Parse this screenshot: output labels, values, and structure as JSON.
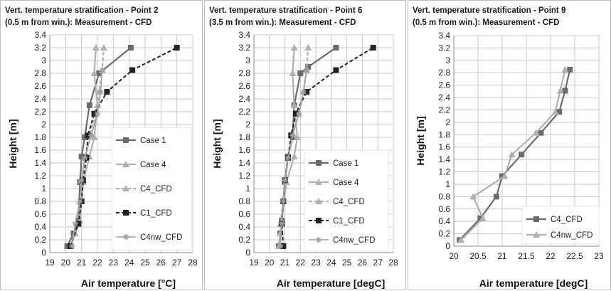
{
  "colors": {
    "case1": "#6b6b6b",
    "case4": "#b0b0b0",
    "c4cfd": "#b0b0b0",
    "c1cfd": "#222222",
    "c4nw": "#a0a0a0",
    "grid": "#c8c8c8"
  },
  "chart_data": [
    {
      "type": "line",
      "title": [
        "Vert. temperature stratification - Point 2",
        "(0.5 m from win.): Measurement - CFD"
      ],
      "xlabel": "Air temperature [°C]",
      "ylabel": "Height [m]",
      "xlim": [
        19,
        28
      ],
      "ylim": [
        0,
        3.4
      ],
      "xticks": [
        "19",
        "20",
        "21",
        "22",
        "23",
        "24",
        "25",
        "26",
        "27",
        "28"
      ],
      "yticks": [
        "0",
        "0.2",
        "0.4",
        "0.6",
        "0.8",
        "1",
        "1.2",
        "1.4",
        "1.6",
        "1.8",
        "2",
        "2.2",
        "2.4",
        "2.6",
        "2.8",
        "3",
        "3.2",
        "3.4"
      ],
      "grid": true,
      "legend_position": "right",
      "series": [
        {
          "name": "Case 1",
          "style": "case1",
          "points": [
            [
              20.1,
              0.1
            ],
            [
              20.5,
              0.3
            ],
            [
              20.8,
              0.5
            ],
            [
              20.9,
              1.1
            ],
            [
              21.0,
              1.5
            ],
            [
              21.2,
              1.8
            ],
            [
              21.5,
              2.3
            ],
            [
              22.1,
              2.8
            ],
            [
              24.1,
              3.2
            ]
          ]
        },
        {
          "name": "Case 4",
          "style": "case4",
          "points": [
            [
              20.3,
              0.1
            ],
            [
              20.6,
              0.3
            ],
            [
              20.9,
              0.5
            ],
            [
              21.1,
              1.1
            ],
            [
              21.5,
              1.5
            ],
            [
              21.8,
              1.8
            ],
            [
              22.0,
              2.3
            ],
            [
              21.8,
              2.8
            ],
            [
              21.9,
              3.2
            ]
          ]
        },
        {
          "name": "C4_CFD",
          "style": "c4cfd",
          "points": [
            [
              20.8,
              0.45
            ],
            [
              20.9,
              0.8
            ],
            [
              21.0,
              1.13
            ],
            [
              21.2,
              1.48
            ],
            [
              21.5,
              1.83
            ],
            [
              21.9,
              2.17
            ],
            [
              22.1,
              2.51
            ],
            [
              22.3,
              2.85
            ],
            [
              22.4,
              3.2
            ]
          ]
        },
        {
          "name": "C1_CFD",
          "style": "c1cfd",
          "points": [
            [
              20.3,
              0.1
            ],
            [
              20.8,
              0.45
            ],
            [
              21.0,
              0.8
            ],
            [
              21.1,
              1.13
            ],
            [
              21.3,
              1.48
            ],
            [
              21.4,
              1.83
            ],
            [
              21.8,
              2.17
            ],
            [
              22.6,
              2.51
            ],
            [
              24.2,
              2.85
            ],
            [
              27.0,
              3.2
            ]
          ]
        },
        {
          "name": "C4nw_CFD",
          "style": "c4nw",
          "points": [
            [
              20.4,
              0.1
            ],
            [
              20.6,
              0.45
            ],
            [
              20.9,
              0.8
            ],
            [
              21.0,
              1.13
            ],
            [
              21.2,
              1.48
            ],
            [
              21.6,
              1.83
            ],
            [
              22.0,
              2.17
            ],
            [
              22.2,
              2.51
            ],
            [
              22.3,
              2.85
            ]
          ]
        }
      ]
    },
    {
      "type": "line",
      "title": [
        "Vert. temperature stratification - Point 6",
        "(3.5 m from win.): Measurement - CFD"
      ],
      "xlabel": "Air temperature [degC]",
      "ylabel": "Height [m]",
      "xlim": [
        19,
        28
      ],
      "ylim": [
        0,
        3.4
      ],
      "xticks": [
        "19",
        "20",
        "21",
        "22",
        "23",
        "24",
        "25",
        "26",
        "27",
        "28"
      ],
      "yticks": [
        "0",
        "0.2",
        "0.4",
        "0.6",
        "0.8",
        "1",
        "1.2",
        "1.4",
        "1.6",
        "1.8",
        "2",
        "2.2",
        "2.4",
        "2.6",
        "2.8",
        "3",
        "3.2",
        "3.4"
      ],
      "grid": true,
      "legend_position": "right",
      "series": [
        {
          "name": "Case 1",
          "style": "case1",
          "points": [
            [
              20.6,
              0.1
            ],
            [
              20.7,
              0.3
            ],
            [
              20.8,
              0.5
            ],
            [
              21.0,
              1.1
            ],
            [
              21.2,
              1.5
            ],
            [
              21.5,
              1.8
            ],
            [
              21.6,
              2.3
            ],
            [
              22.0,
              2.8
            ],
            [
              22.5,
              2.9
            ],
            [
              24.3,
              3.2
            ]
          ]
        },
        {
          "name": "Case 4",
          "style": "case4",
          "points": [
            [
              20.6,
              0.1
            ],
            [
              20.7,
              0.3
            ],
            [
              20.8,
              0.5
            ],
            [
              21.1,
              1.1
            ],
            [
              21.6,
              1.5
            ],
            [
              21.8,
              1.8
            ],
            [
              21.6,
              2.3
            ],
            [
              21.5,
              2.8
            ],
            [
              21.6,
              3.2
            ]
          ]
        },
        {
          "name": "C4_CFD",
          "style": "c4cfd",
          "points": [
            [
              20.7,
              0.45
            ],
            [
              20.9,
              0.8
            ],
            [
              21.0,
              1.13
            ],
            [
              21.2,
              1.48
            ],
            [
              21.5,
              1.83
            ],
            [
              21.9,
              2.17
            ],
            [
              22.2,
              2.51
            ],
            [
              22.4,
              2.85
            ],
            [
              22.5,
              3.2
            ]
          ]
        },
        {
          "name": "C1_CFD",
          "style": "c1cfd",
          "points": [
            [
              20.9,
              0.1
            ],
            [
              20.8,
              0.45
            ],
            [
              20.9,
              0.8
            ],
            [
              21.0,
              1.13
            ],
            [
              21.2,
              1.48
            ],
            [
              21.4,
              1.83
            ],
            [
              21.7,
              2.17
            ],
            [
              22.4,
              2.51
            ],
            [
              24.3,
              2.85
            ],
            [
              26.7,
              3.2
            ]
          ]
        },
        {
          "name": "C4nw_CFD",
          "style": "c4nw",
          "points": [
            [
              20.7,
              0.1
            ],
            [
              20.8,
              0.45
            ],
            [
              20.9,
              0.8
            ],
            [
              21.0,
              1.13
            ],
            [
              21.2,
              1.48
            ],
            [
              21.5,
              1.83
            ],
            [
              21.9,
              2.17
            ],
            [
              22.2,
              2.51
            ],
            [
              22.4,
              2.85
            ]
          ]
        }
      ]
    },
    {
      "type": "line",
      "title": [
        "Vert. temperature stratification - Point 9",
        "(0.5 m from win.): Measurement - CFD"
      ],
      "xlabel": "Air temperature [degC]",
      "ylabel": "Height [m]",
      "xlim": [
        20,
        23
      ],
      "ylim": [
        0,
        3.4
      ],
      "xticks": [
        "20",
        "20.5",
        "21",
        "21.5",
        "22",
        "22.5",
        "23"
      ],
      "yticks": [
        "0",
        "0.2",
        "0.4",
        "0.6",
        "0.8",
        "1",
        "1.2",
        "1.4",
        "1.6",
        "1.8",
        "2",
        "2.2",
        "2.4",
        "2.6",
        "2.8",
        "3",
        "3.2",
        "3.4"
      ],
      "grid": true,
      "legend_position": "bottom-right",
      "series": [
        {
          "name": "C4_CFD",
          "style": "case1",
          "points": [
            [
              20.12,
              0.1
            ],
            [
              20.55,
              0.45
            ],
            [
              20.88,
              0.8
            ],
            [
              21.0,
              1.13
            ],
            [
              21.4,
              1.48
            ],
            [
              21.8,
              1.83
            ],
            [
              22.18,
              2.17
            ],
            [
              22.3,
              2.51
            ],
            [
              22.4,
              2.85
            ]
          ]
        },
        {
          "name": "C4nw_CFD",
          "style": "case4",
          "points": [
            [
              20.15,
              0.1
            ],
            [
              20.6,
              0.45
            ],
            [
              20.4,
              0.8
            ],
            [
              21.05,
              1.13
            ],
            [
              21.2,
              1.48
            ],
            [
              21.7,
              1.83
            ],
            [
              22.1,
              2.17
            ],
            [
              22.2,
              2.51
            ],
            [
              22.3,
              2.85
            ]
          ]
        }
      ]
    }
  ]
}
